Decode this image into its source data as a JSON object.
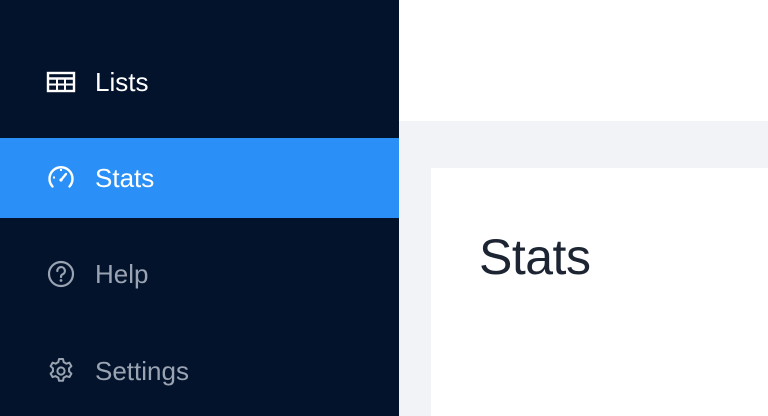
{
  "sidebar": {
    "items": [
      {
        "label": "Lists",
        "icon": "table-icon",
        "active": false
      },
      {
        "label": "Stats",
        "icon": "speedometer-icon",
        "active": true
      },
      {
        "label": "Help",
        "icon": "help-circle-icon",
        "active": false
      },
      {
        "label": "Settings",
        "icon": "gear-icon",
        "active": false
      }
    ]
  },
  "main": {
    "title": "Stats"
  },
  "colors": {
    "sidebar_bg": "#03132c",
    "active_bg": "#2a8ff7",
    "inactive_text": "#9aa3b2",
    "page_bg": "#f2f3f7"
  }
}
